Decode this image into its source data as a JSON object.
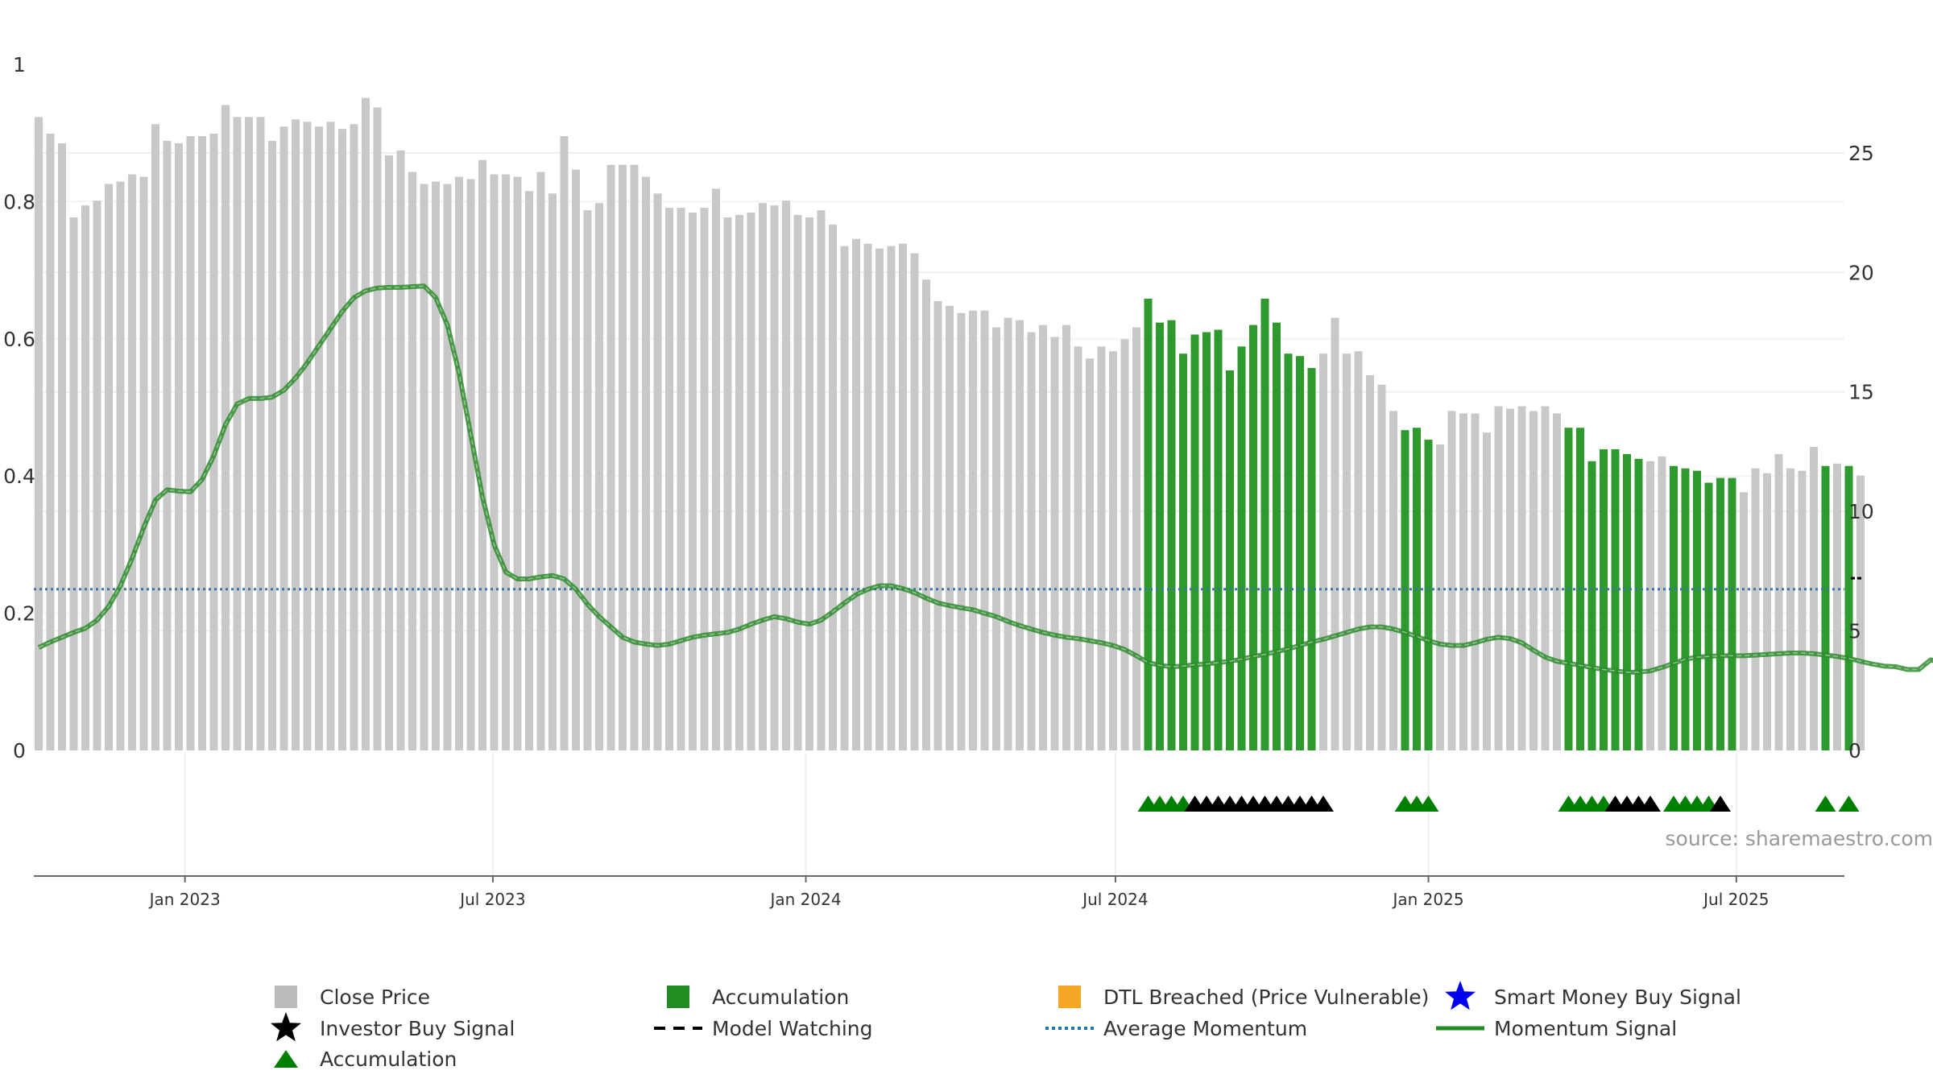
{
  "chart_data": {
    "type": "bar",
    "left_axis": {
      "range": [
        0,
        1
      ],
      "ticks": [
        0,
        0.2,
        0.4,
        0.6,
        0.8,
        1
      ],
      "tick_labels": [
        "0",
        "0.2",
        "0.4",
        "0.6",
        "0.8",
        "1"
      ]
    },
    "right_axis": {
      "range": [
        0,
        28.7
      ],
      "ticks": [
        0,
        5,
        10,
        15,
        20,
        25
      ],
      "tick_labels": [
        "0",
        "5",
        "10",
        "15",
        "20",
        "25"
      ]
    },
    "x_axis": {
      "start": "2022-10-07",
      "end": "2025-09-12",
      "ticks": [
        "2023-01-01",
        "2023-07-01",
        "2024-01-01",
        "2024-07-01",
        "2025-01-01",
        "2025-07-01"
      ],
      "tick_labels": [
        "Jan 2023",
        "Jul 2023",
        "Jan 2024",
        "Jul 2024",
        "Jan 2025",
        "Jul 2025"
      ]
    },
    "bar_interval_days": 7,
    "close_price": [
      26.5,
      25.8,
      25.4,
      22.3,
      22.8,
      23.0,
      23.7,
      23.8,
      24.1,
      24.0,
      26.2,
      25.5,
      25.4,
      25.7,
      25.7,
      25.8,
      27.0,
      26.5,
      26.5,
      26.5,
      25.5,
      26.1,
      26.4,
      26.3,
      26.1,
      26.3,
      26.0,
      26.2,
      27.3,
      26.9,
      24.9,
      25.1,
      24.2,
      23.7,
      23.8,
      23.7,
      24.0,
      23.9,
      24.7,
      24.1,
      24.1,
      24.0,
      23.4,
      24.2,
      23.3,
      25.7,
      24.3,
      22.6,
      22.9,
      24.5,
      24.5,
      24.5,
      24.0,
      23.3,
      22.7,
      22.7,
      22.5,
      22.7,
      23.5,
      22.3,
      22.4,
      22.5,
      22.9,
      22.8,
      23.0,
      22.4,
      22.3,
      22.6,
      22.0,
      21.1,
      21.4,
      21.2,
      21.0,
      21.1,
      21.2,
      20.8,
      19.7,
      18.8,
      18.6,
      18.3,
      18.4,
      18.4,
      17.7,
      18.1,
      18.0,
      17.5,
      17.8,
      17.3,
      17.8,
      16.9,
      16.4,
      16.9,
      16.7,
      17.2,
      17.7,
      18.9,
      17.9,
      18.0,
      16.6,
      17.4,
      17.5,
      17.6,
      15.9,
      16.9,
      17.8,
      18.9,
      17.9,
      16.6,
      16.5,
      16.0,
      16.6,
      18.1,
      16.6,
      16.7,
      15.7,
      15.3,
      14.2,
      13.4,
      13.5,
      13.0,
      12.8,
      14.2,
      14.1,
      14.1,
      13.3,
      14.4,
      14.3,
      14.4,
      14.2,
      14.4,
      14.1,
      13.5,
      13.5,
      12.1,
      12.6,
      12.6,
      12.4,
      12.2,
      12.1,
      12.3,
      11.9,
      11.8,
      11.7,
      11.2,
      11.4,
      11.4,
      10.8,
      11.8,
      11.6,
      12.4,
      11.8,
      11.7,
      12.7,
      11.9,
      12.0,
      11.9,
      11.5
    ],
    "accumulation_bars": [
      [
        95,
        109
      ],
      [
        117,
        119
      ],
      [
        131,
        137
      ],
      [
        140,
        145
      ],
      [
        153,
        153
      ],
      [
        155,
        155
      ]
    ],
    "momentum_signal": [
      0.15,
      0.158,
      0.165,
      0.172,
      0.178,
      0.19,
      0.21,
      0.24,
      0.28,
      0.325,
      0.365,
      0.38,
      0.378,
      0.377,
      0.395,
      0.43,
      0.475,
      0.505,
      0.513,
      0.513,
      0.515,
      0.525,
      0.543,
      0.565,
      0.59,
      0.615,
      0.64,
      0.66,
      0.67,
      0.674,
      0.675,
      0.675,
      0.676,
      0.677,
      0.66,
      0.62,
      0.55,
      0.46,
      0.37,
      0.3,
      0.26,
      0.25,
      0.25,
      0.253,
      0.255,
      0.25,
      0.235,
      0.213,
      0.195,
      0.18,
      0.165,
      0.158,
      0.155,
      0.153,
      0.155,
      0.16,
      0.165,
      0.168,
      0.17,
      0.172,
      0.177,
      0.184,
      0.19,
      0.195,
      0.192,
      0.187,
      0.184,
      0.19,
      0.202,
      0.215,
      0.227,
      0.235,
      0.24,
      0.24,
      0.236,
      0.23,
      0.222,
      0.215,
      0.211,
      0.208,
      0.205,
      0.2,
      0.195,
      0.188,
      0.182,
      0.177,
      0.172,
      0.168,
      0.165,
      0.163,
      0.16,
      0.157,
      0.153,
      0.147,
      0.138,
      0.128,
      0.124,
      0.122,
      0.123,
      0.125,
      0.126,
      0.128,
      0.13,
      0.133,
      0.137,
      0.14,
      0.144,
      0.148,
      0.153,
      0.158,
      0.162,
      0.167,
      0.172,
      0.177,
      0.18,
      0.18,
      0.177,
      0.172,
      0.166,
      0.16,
      0.155,
      0.153,
      0.153,
      0.157,
      0.162,
      0.165,
      0.163,
      0.157,
      0.146,
      0.136,
      0.13,
      0.127,
      0.124,
      0.121,
      0.118,
      0.116,
      0.114,
      0.114,
      0.116,
      0.121,
      0.127,
      0.133,
      0.136,
      0.137,
      0.138,
      0.138,
      0.138,
      0.139,
      0.14,
      0.141,
      0.142,
      0.142,
      0.141,
      0.139,
      0.137,
      0.134,
      0.13,
      0.126,
      0.123,
      0.122,
      0.118,
      0.118,
      0.132,
      0.128,
      0.145,
      0.14
    ],
    "average_momentum": 0.235,
    "accumulation_triangles": [
      95,
      96,
      97,
      98,
      117,
      118,
      119,
      131,
      132,
      133,
      134,
      140,
      141,
      142,
      143,
      153,
      155
    ],
    "investor_buy_signals": [
      99,
      100,
      101,
      102,
      103,
      104,
      105,
      106,
      107,
      108,
      109,
      110,
      135,
      136,
      137,
      138,
      144
    ],
    "model_watching_marker": {
      "bar": 156,
      "value": 0.251
    },
    "legend": [
      {
        "label": "Close Price",
        "marker": "square",
        "color": "#bbbbbb"
      },
      {
        "label": "Accumulation",
        "marker": "square",
        "color": "#228b22"
      },
      {
        "label": "DTL Breached (Price Vulnerable)",
        "marker": "square",
        "color": "#f5a623"
      },
      {
        "label": "Smart Money Buy Signal",
        "marker": "star",
        "color": "#0000ee"
      },
      {
        "label": "Investor Buy Signal",
        "marker": "star",
        "color": "#000000"
      },
      {
        "label": "Model Watching",
        "marker": "dash",
        "color": "#000000"
      },
      {
        "label": "Average Momentum",
        "marker": "dotted",
        "color": "#1f77b4"
      },
      {
        "label": "Momentum Signal",
        "marker": "line",
        "color": "#228b22"
      },
      {
        "label": "Accumulation",
        "marker": "triangle",
        "color": "#008000"
      }
    ],
    "colors": {
      "close_price": "#c8c8c8",
      "accumulation": "#2e9a2e",
      "momentum_line": "#2f8a2f",
      "average_momentum": "#3a75a8",
      "triangle_green": "#008000",
      "triangle_black": "#000000",
      "grid": "#eeeeee"
    },
    "grid": true,
    "legend_position": "bottom"
  },
  "source": "source: sharemaestro.com"
}
